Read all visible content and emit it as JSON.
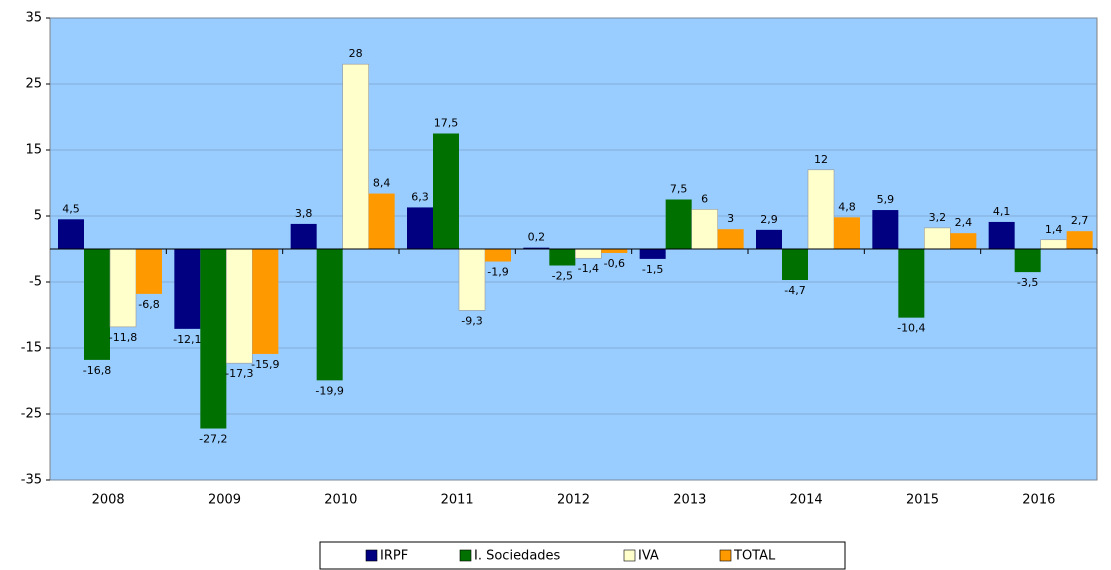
{
  "chart_data": {
    "type": "bar",
    "categories": [
      "2008",
      "2009",
      "2010",
      "2011",
      "2012",
      "2013",
      "2014",
      "2015",
      "2016"
    ],
    "series": [
      {
        "name": "IRPF",
        "color": "#000080",
        "values": [
          4.5,
          -12.1,
          3.8,
          6.3,
          0.2,
          -1.5,
          2.9,
          5.9,
          4.1
        ],
        "value_labels": [
          "4,5",
          "-12,1",
          "3,8",
          "6,3",
          "0,2",
          "-1,5",
          "2,9",
          "5,9",
          "4,1"
        ]
      },
      {
        "name": "I. Sociedades",
        "color": "#007000",
        "values": [
          -16.8,
          -27.2,
          -19.9,
          17.5,
          -2.5,
          7.5,
          -4.7,
          -10.4,
          -3.5
        ],
        "value_labels": [
          "-16,8",
          "-27,2",
          "-19,9",
          "17,5",
          "-2,5",
          "7,5",
          "-4,7",
          "-10,4",
          "-3,5"
        ]
      },
      {
        "name": "IVA",
        "color": "#ffffcc",
        "values": [
          -11.8,
          -17.3,
          28,
          -9.3,
          -1.4,
          6,
          12,
          3.2,
          1.4
        ],
        "value_labels": [
          "-11,8",
          "-17,3",
          "28",
          "-9,3",
          "-1,4",
          "6",
          "12",
          "3,2",
          "1,4"
        ]
      },
      {
        "name": "TOTAL",
        "color": "#ff9900",
        "values": [
          -6.8,
          -15.9,
          8.4,
          -1.9,
          -0.6,
          3,
          4.8,
          2.4,
          2.7
        ],
        "value_labels": [
          "-6,8",
          "-15,9",
          "8,4",
          "-1,9",
          "-0,6",
          "3",
          "4,8",
          "2,4",
          "2,7"
        ]
      }
    ],
    "ylim": [
      -35,
      35
    ],
    "yticks": [
      -35,
      -25,
      -15,
      -5,
      5,
      15,
      25,
      35
    ],
    "grid": true,
    "plot_background": "#99ccff"
  }
}
